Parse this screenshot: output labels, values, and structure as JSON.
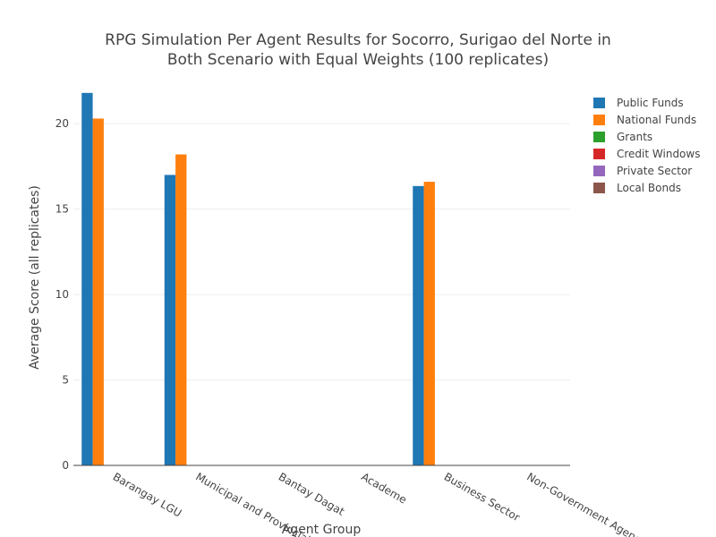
{
  "chart_data": {
    "type": "bar",
    "title_lines": [
      "RPG Simulation Per Agent Results for Socorro, Surigao del Norte in",
      "Both Scenario with Equal Weights (100 replicates)"
    ],
    "xlabel": "Agent Group",
    "ylabel": "Average Score (all replicates)",
    "ylim": [
      0,
      22
    ],
    "yticks": [
      0,
      5,
      10,
      15,
      20
    ],
    "grid": true,
    "legend_position": "top-right",
    "categories": [
      "Barangay LGU",
      "Municipal and Provincial LGU",
      "Bantay Dagat",
      "Academe",
      "Business Sector",
      "Non-Government Agencies"
    ],
    "series": [
      {
        "name": "Public Funds",
        "color": "#1f77b4",
        "values": [
          21.8,
          17.0,
          0,
          0,
          16.35,
          0
        ]
      },
      {
        "name": "National Funds",
        "color": "#ff7f0e",
        "values": [
          20.3,
          18.2,
          0,
          0,
          16.6,
          0
        ]
      },
      {
        "name": "Grants",
        "color": "#2ca02c",
        "values": [
          0,
          0,
          0,
          0,
          0,
          0
        ]
      },
      {
        "name": "Credit Windows",
        "color": "#d62728",
        "values": [
          0,
          0,
          0,
          0,
          0,
          0
        ]
      },
      {
        "name": "Private Sector",
        "color": "#9467bd",
        "values": [
          0,
          0,
          0,
          0,
          0,
          0
        ]
      },
      {
        "name": "Local Bonds",
        "color": "#8c564b",
        "values": [
          0,
          0,
          0,
          0,
          0,
          0
        ]
      }
    ]
  }
}
